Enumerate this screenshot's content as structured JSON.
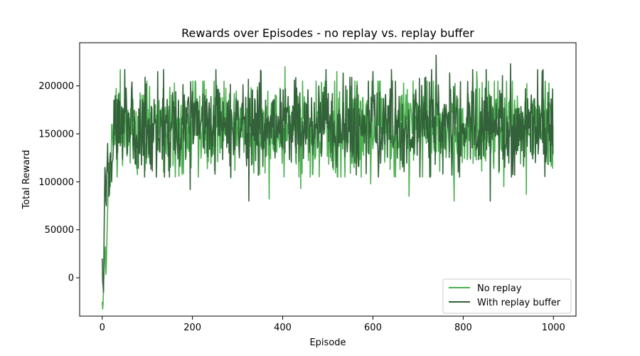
{
  "chart_data": {
    "type": "line",
    "title": "Rewards over Episodes - no replay vs. replay buffer",
    "xlabel": "Episode",
    "ylabel": "Total Reward",
    "xlim": [
      -50,
      1050
    ],
    "ylim": [
      -40000,
      245000
    ],
    "xticks": [
      0,
      200,
      400,
      600,
      800,
      1000
    ],
    "yticks": [
      0,
      50000,
      100000,
      150000,
      200000
    ],
    "xtick_labels": [
      "0",
      "200",
      "400",
      "600",
      "800",
      "1000"
    ],
    "ytick_labels": [
      "0",
      "50000",
      "100000",
      "150000",
      "200000"
    ],
    "grid": false,
    "legend_position": "lower-right",
    "x_range": [
      0,
      999
    ],
    "series": [
      {
        "name": "No replay",
        "color": "#4caf50",
        "warmup": [
          [
            0,
            -25000
          ],
          [
            3,
            -5000
          ],
          [
            6,
            25000
          ],
          [
            9,
            10000
          ],
          [
            12,
            70000
          ],
          [
            15,
            120000
          ],
          [
            18,
            95000
          ],
          [
            21,
            160000
          ],
          [
            25,
            135000
          ]
        ],
        "plateau": {
          "mean": 158000,
          "min": 80000,
          "max": 220000
        },
        "spikes": [
          [
            40,
            217000
          ],
          [
            95,
            112000
          ],
          [
            160,
            203000
          ],
          [
            285,
            104000
          ],
          [
            330,
            198000
          ],
          [
            370,
            82000
          ],
          [
            405,
            220000
          ],
          [
            440,
            93000
          ],
          [
            520,
            215000
          ],
          [
            595,
            98000
          ],
          [
            680,
            85000
          ],
          [
            720,
            205000
          ],
          [
            780,
            80000
          ],
          [
            830,
            215000
          ],
          [
            890,
            95000
          ],
          [
            940,
            87000
          ],
          [
            990,
            203000
          ]
        ]
      },
      {
        "name": "With replay buffer",
        "color": "#33613a",
        "warmup": [
          [
            0,
            20000
          ],
          [
            3,
            -15000
          ],
          [
            6,
            115000
          ],
          [
            9,
            75000
          ],
          [
            12,
            140000
          ],
          [
            15,
            85000
          ],
          [
            18,
            130000
          ],
          [
            21,
            100000
          ],
          [
            25,
            145000
          ]
        ],
        "plateau": {
          "mean": 157000,
          "min": 80000,
          "max": 232000
        },
        "spikes": [
          [
            195,
            92000
          ],
          [
            250,
            108000
          ],
          [
            325,
            80000
          ],
          [
            352,
            215000
          ],
          [
            480,
            200000
          ],
          [
            540,
            200000
          ],
          [
            600,
            215000
          ],
          [
            650,
            205000
          ],
          [
            740,
            232000
          ],
          [
            775,
            107000
          ],
          [
            860,
            80000
          ],
          [
            905,
            223000
          ],
          [
            960,
            120000
          ]
        ]
      }
    ]
  }
}
